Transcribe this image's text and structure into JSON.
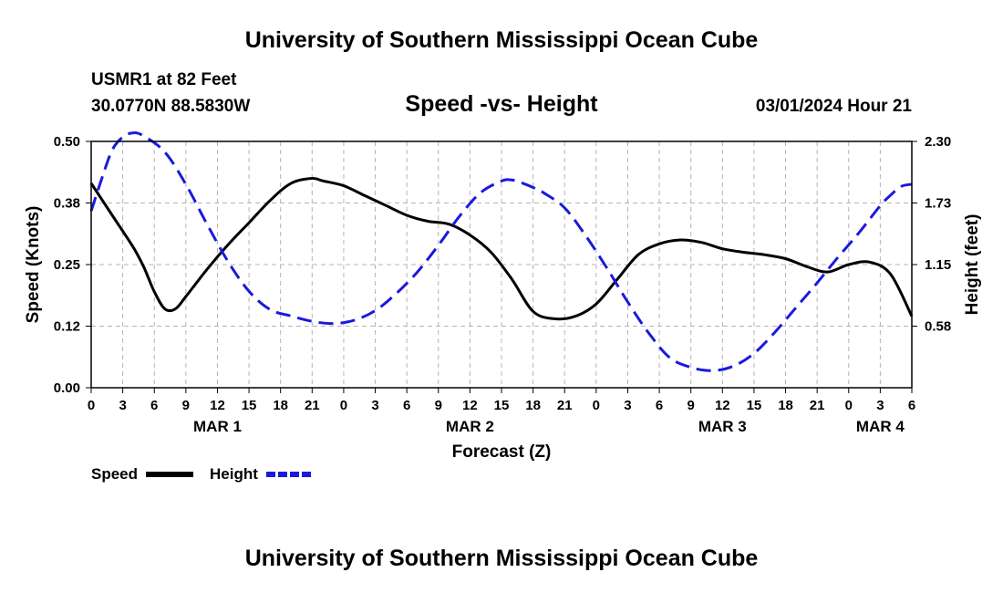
{
  "header": {
    "title": "University of Southern Mississippi Ocean Cube",
    "station": "USMR1 at 82 Feet",
    "coords": "30.0770N  88.5830W",
    "subtitle": "Speed -vs- Height",
    "datetime": "03/01/2024 Hour 21"
  },
  "footer": {
    "title": "University of Southern Mississippi Ocean Cube"
  },
  "chart_data": {
    "type": "line",
    "title": "Speed -vs- Height",
    "xlabel": "Forecast (Z)",
    "ylabel": "Speed (Knots)",
    "y2label": "Height (feet)",
    "grid": true,
    "xlim": [
      0,
      78
    ],
    "ylim": [
      0,
      0.5
    ],
    "y2lim": [
      0,
      2.3
    ],
    "x_ticks": [
      0,
      3,
      6,
      9,
      12,
      15,
      18,
      21,
      24,
      27,
      30,
      33,
      36,
      39,
      42,
      45,
      48,
      51,
      54,
      57,
      60,
      63,
      66,
      69,
      72,
      75,
      78
    ],
    "x_tick_labels": [
      "0",
      "3",
      "6",
      "9",
      "12",
      "15",
      "18",
      "21",
      "0",
      "3",
      "6",
      "9",
      "12",
      "15",
      "18",
      "21",
      "0",
      "3",
      "6",
      "9",
      "12",
      "15",
      "18",
      "21",
      "0",
      "3",
      "6"
    ],
    "y_ticks": [
      0,
      0.125,
      0.25,
      0.375,
      0.5
    ],
    "y_tick_labels": [
      "0.00",
      "0.12",
      "0.25",
      "0.38",
      "0.50"
    ],
    "y2_ticks": [
      0.575,
      1.15,
      1.725,
      2.3
    ],
    "y2_tick_labels": [
      "0.58",
      "1.15",
      "1.73",
      "2.30"
    ],
    "day_labels": [
      {
        "x": 12,
        "label": "MAR 1"
      },
      {
        "x": 36,
        "label": "MAR 2"
      },
      {
        "x": 60,
        "label": "MAR 3"
      },
      {
        "x": 75,
        "label": "MAR 4"
      }
    ],
    "series": [
      {
        "name": "Speed",
        "axis": "left",
        "color": "#000000",
        "dash": "solid",
        "x": [
          0,
          2,
          4,
          5,
          6,
          7,
          8,
          9,
          11,
          13,
          15,
          17,
          19,
          21,
          22,
          24,
          26,
          28,
          30,
          32,
          34,
          36,
          38,
          40,
          42,
          44,
          46,
          48,
          50,
          52,
          54,
          56,
          58,
          60,
          62,
          64,
          66,
          68,
          70,
          72,
          74,
          76,
          78
        ],
        "y": [
          0.415,
          0.35,
          0.285,
          0.245,
          0.195,
          0.16,
          0.16,
          0.185,
          0.24,
          0.29,
          0.335,
          0.38,
          0.415,
          0.425,
          0.42,
          0.41,
          0.39,
          0.37,
          0.35,
          0.338,
          0.332,
          0.31,
          0.275,
          0.22,
          0.155,
          0.14,
          0.145,
          0.17,
          0.22,
          0.27,
          0.292,
          0.3,
          0.295,
          0.282,
          0.275,
          0.27,
          0.262,
          0.246,
          0.235,
          0.25,
          0.255,
          0.23,
          0.145
        ]
      },
      {
        "name": "Height",
        "axis": "right",
        "color": "#1a1adc",
        "dash": "dashed",
        "x": [
          0,
          1,
          2,
          3,
          4,
          5,
          7,
          9,
          11,
          13,
          15,
          17,
          19,
          21,
          23,
          25,
          27,
          29,
          31,
          33,
          35,
          37,
          39,
          40,
          41,
          42,
          43,
          45,
          47,
          49,
          51,
          53,
          55,
          57,
          59,
          61,
          63,
          65,
          67,
          69,
          71,
          73,
          75,
          76,
          77,
          78
        ],
        "y": [
          1.65,
          1.95,
          2.22,
          2.34,
          2.38,
          2.35,
          2.2,
          1.9,
          1.53,
          1.18,
          0.9,
          0.73,
          0.67,
          0.62,
          0.6,
          0.63,
          0.72,
          0.88,
          1.08,
          1.33,
          1.6,
          1.82,
          1.93,
          1.94,
          1.91,
          1.87,
          1.82,
          1.68,
          1.42,
          1.12,
          0.8,
          0.51,
          0.28,
          0.19,
          0.16,
          0.2,
          0.32,
          0.52,
          0.75,
          0.98,
          1.22,
          1.45,
          1.7,
          1.8,
          1.88,
          1.9
        ]
      }
    ],
    "legend": [
      {
        "label": "Speed",
        "color": "#000000",
        "dash": "solid"
      },
      {
        "label": "Height",
        "color": "#1a1adc",
        "dash": "dashed"
      }
    ]
  }
}
